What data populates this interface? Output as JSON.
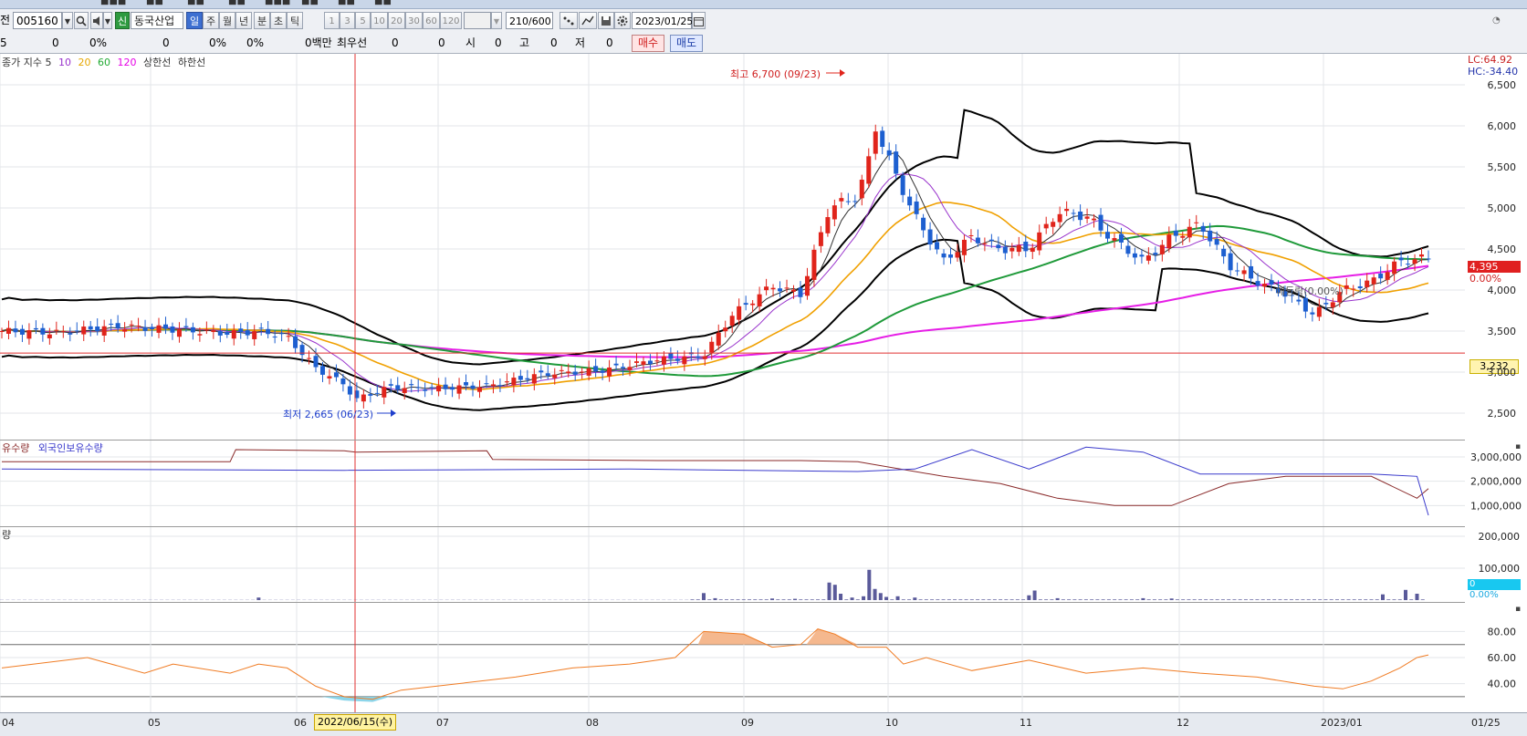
{
  "toolbar": {
    "prefix": "전",
    "stock_code": "005160",
    "credit_badge": "신",
    "stock_name": "동국산업",
    "periods": [
      "일",
      "주",
      "월",
      "년",
      "분",
      "초",
      "틱"
    ],
    "active_period": "일",
    "minute_steps": [
      "1",
      "3",
      "5",
      "10",
      "20",
      "30",
      "60",
      "120"
    ],
    "count": "210/600",
    "date": "2023/01/25"
  },
  "quote_bar": {
    "cells": [
      "5",
      "0",
      "0%",
      "0",
      "0%",
      "0%",
      "0백만",
      "최우선",
      "0",
      "0",
      "시",
      "0",
      "고",
      "0",
      "저",
      "0"
    ],
    "buy_label": "매수",
    "sell_label": "매도"
  },
  "price_pane": {
    "legend": [
      "종가 지수 5",
      "10",
      "20",
      "60",
      "120",
      "상한선",
      "하한선"
    ],
    "legend_colors": [
      "#333333",
      "#9933cc",
      "#e6a700",
      "#22aa33",
      "#e600e6",
      "#333333",
      "#333333"
    ],
    "lc_label": "LC:64.92",
    "hc_label": "HC:-34.40",
    "high_annotation": "최고 6,700 (09/23)",
    "low_annotation": "최저 2,665 (06/23)",
    "last_price": "4,395",
    "last_change": "0.00%",
    "cursor_price": "3,232",
    "mid_annotation": "매등락(0.00%)",
    "y_ticks": [
      "6,500",
      "6,000",
      "5,500",
      "5,000",
      "4,500",
      "4,000",
      "3,500",
      "3,000",
      "2,500"
    ]
  },
  "holdings_pane": {
    "legend": [
      "유수량",
      "외국인보유수량"
    ],
    "y_ticks": [
      "3,000,000",
      "2,000,000",
      "1,000,000"
    ]
  },
  "volume_pane": {
    "legend": "량",
    "y_ticks": [
      "200,000",
      "100,000"
    ],
    "badge_value": "0",
    "badge_pct": "0.00%"
  },
  "oscillator_pane": {
    "y_ticks": [
      "80.00",
      "60.00",
      "40.00"
    ]
  },
  "x_axis": {
    "labels": [
      "04",
      "05",
      "06",
      "07",
      "08",
      "09",
      "10",
      "11",
      "12",
      "2023/01",
      "01/25"
    ],
    "cursor_date": "2022/06/15(수)"
  },
  "colors": {
    "up": "#e0241b",
    "down": "#1d5fd0",
    "cursor": "#e03030",
    "bollinger": "#000000",
    "ma5": "#333333",
    "ma10": "#9933cc",
    "ma20": "#f0a000",
    "ma60": "#1f9a3a",
    "ma120": "#e61ee6",
    "holdings_foreign": "#8a2a2a",
    "holdings_total": "#3a3acc",
    "volume": "#5a5a9a",
    "osc": "#f07c24"
  }
}
